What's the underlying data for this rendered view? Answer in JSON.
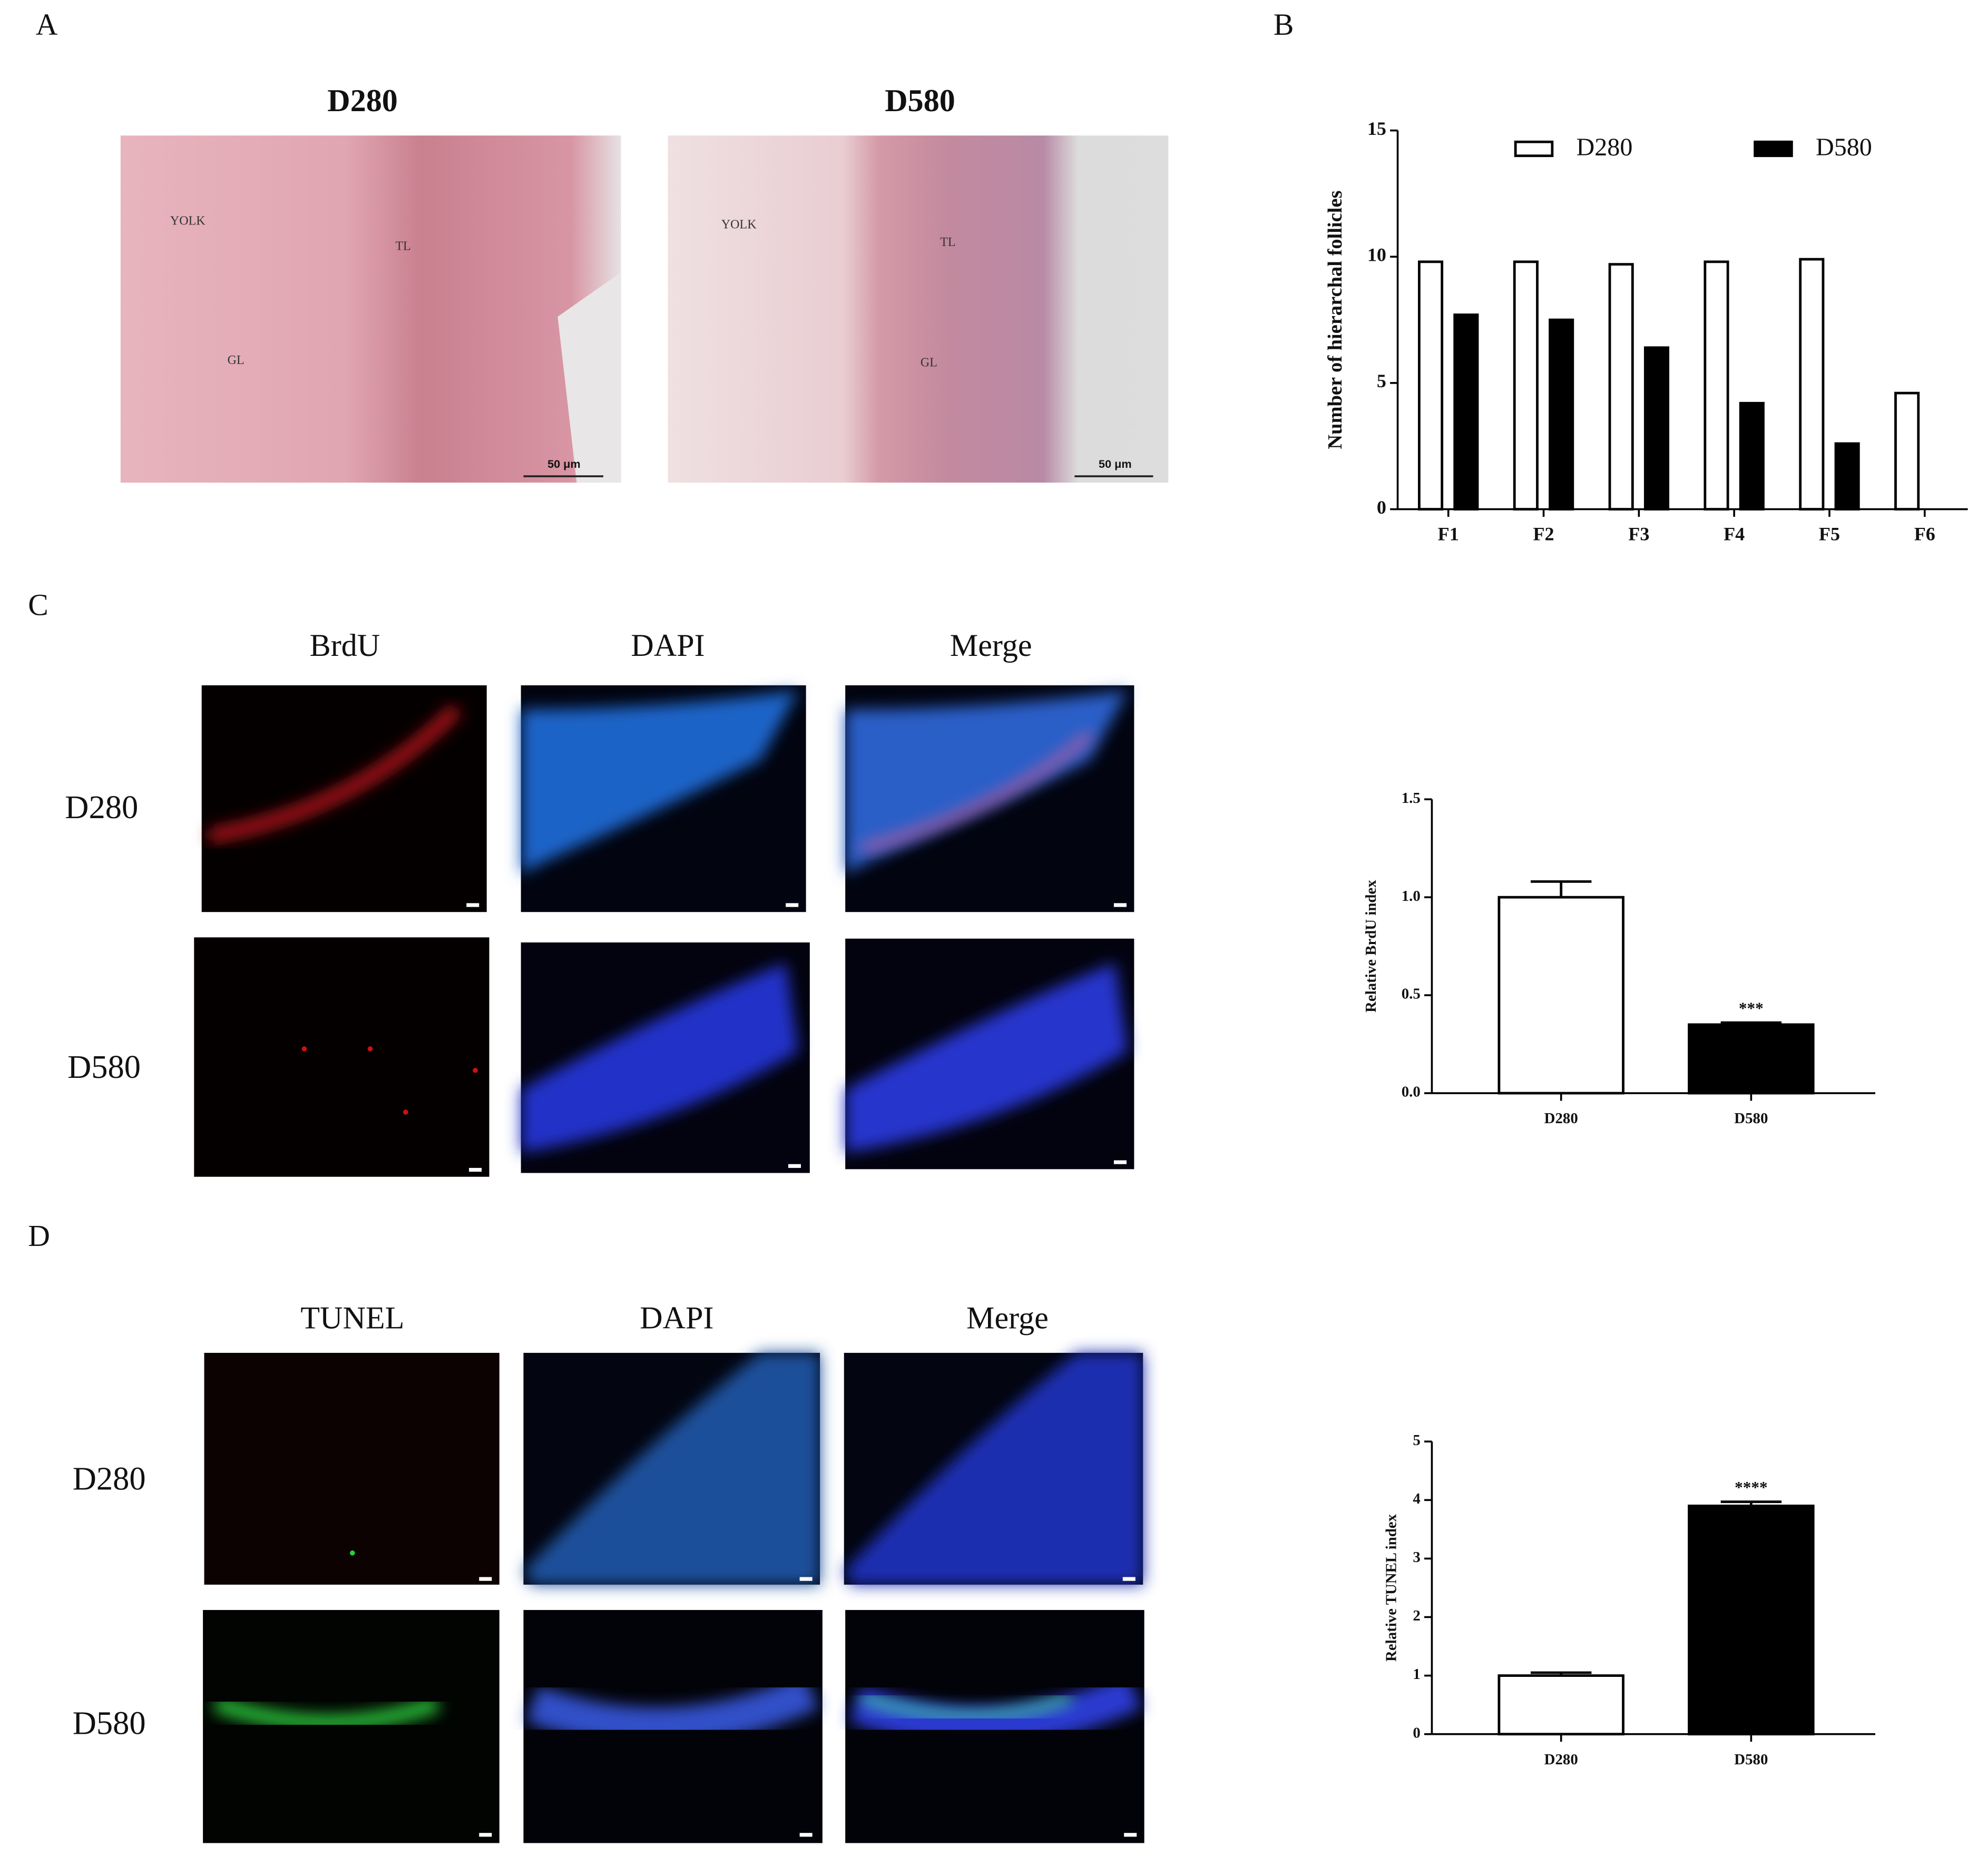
{
  "figure": {
    "panel_labels": [
      "A",
      "B",
      "C",
      "D"
    ],
    "panel_a": {
      "columns": [
        "D280",
        "D580"
      ],
      "annotations": [
        "YOLK",
        "TL",
        "GL"
      ],
      "scale_bar": "50 μm"
    },
    "panel_c": {
      "columns": [
        "BrdU",
        "DAPI",
        "Merge"
      ],
      "rows": [
        "D280",
        "D580"
      ]
    },
    "panel_d": {
      "columns": [
        "TUNEL",
        "DAPI",
        "Merge"
      ],
      "rows": [
        "D280",
        "D580"
      ]
    }
  },
  "chart_data": [
    {
      "type": "bar",
      "y_label": "Number of hierarchal follicles",
      "categories": [
        "F1",
        "F2",
        "F3",
        "F4",
        "F5",
        "F6"
      ],
      "series": [
        {
          "name": "D280",
          "color": "#ffffff",
          "values": [
            9.8,
            9.8,
            9.7,
            9.8,
            9.9,
            4.6
          ]
        },
        {
          "name": "D580",
          "color": "#000000",
          "values": [
            7.7,
            7.5,
            6.4,
            4.2,
            2.6,
            null
          ]
        }
      ],
      "ylim": [
        0,
        15
      ],
      "yticks": [
        0,
        5,
        10,
        15
      ],
      "legend": "top"
    },
    {
      "type": "bar",
      "y_label": "Relative BrdU index",
      "categories": [
        "D280",
        "D580"
      ],
      "values": [
        1.0,
        0.35
      ],
      "errors": [
        0.08,
        0.01
      ],
      "colors": [
        "#ffffff",
        "#000000"
      ],
      "significance": [
        null,
        "***"
      ],
      "ylim": [
        0,
        1.5
      ],
      "yticks": [
        {
          "value": 0,
          "label": "0.0"
        },
        {
          "value": 0.5,
          "label": "0.5"
        },
        {
          "value": 1,
          "label": "1.0"
        },
        {
          "value": 1.5,
          "label": "1.5"
        }
      ]
    },
    {
      "type": "bar",
      "y_label": "Relative TUNEL index",
      "categories": [
        "D280",
        "D580"
      ],
      "values": [
        1.0,
        3.9
      ],
      "errors": [
        0.05,
        0.07
      ],
      "colors": [
        "#ffffff",
        "#000000"
      ],
      "significance": [
        null,
        "****"
      ],
      "ylim": [
        0,
        5
      ],
      "yticks": [
        0,
        1,
        2,
        3,
        4,
        5
      ]
    }
  ]
}
